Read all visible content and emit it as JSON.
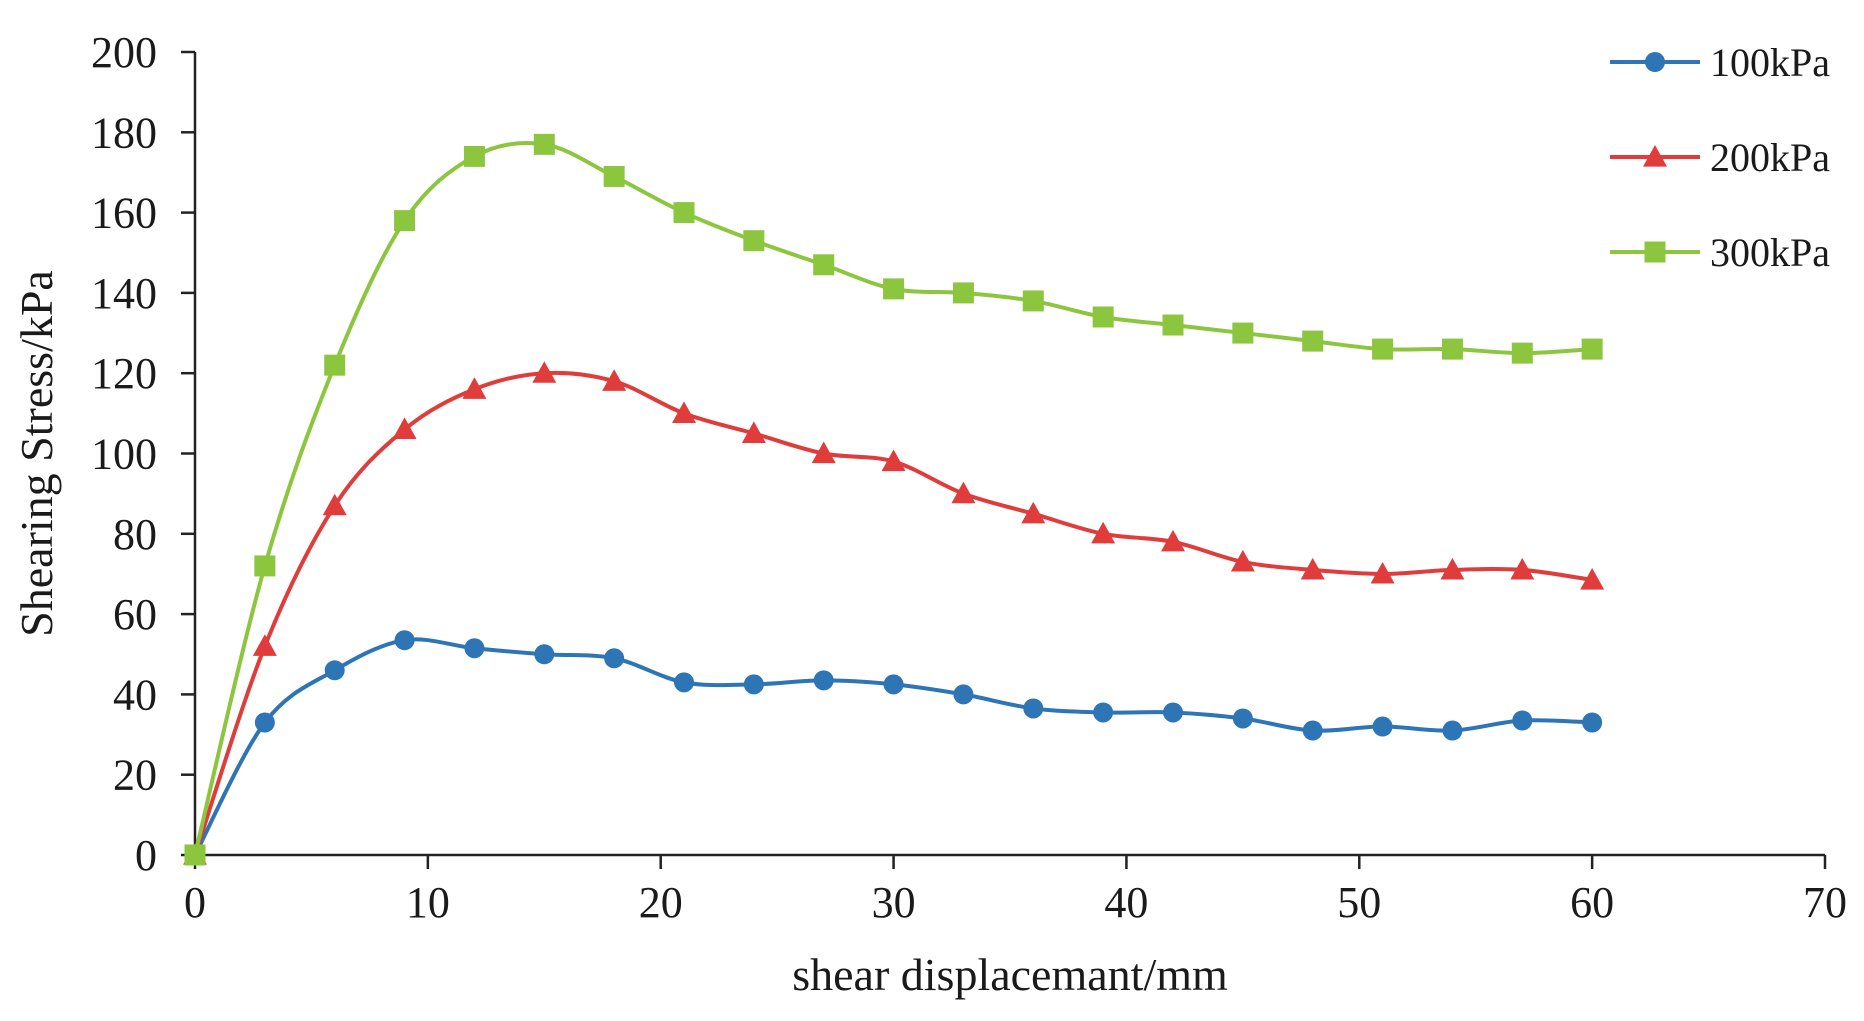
{
  "chart_data": {
    "type": "line",
    "title": "",
    "xlabel": "shear displacemant/mm",
    "ylabel": "Shearing Stress/kPa",
    "xlim": [
      0,
      70
    ],
    "ylim": [
      0,
      200
    ],
    "xticks": [
      0,
      10,
      20,
      30,
      40,
      50,
      60,
      70
    ],
    "yticks": [
      0,
      20,
      40,
      60,
      80,
      100,
      120,
      140,
      160,
      180,
      200
    ],
    "grid": false,
    "legend_position": "top-right",
    "x": [
      0,
      3,
      6,
      9,
      12,
      15,
      18,
      21,
      24,
      27,
      30,
      33,
      36,
      39,
      42,
      45,
      48,
      51,
      54,
      57,
      60
    ],
    "series": [
      {
        "name": "100kPa",
        "color": "#2e75b6",
        "marker": "circle",
        "values": [
          0,
          33,
          46,
          53.5,
          51.5,
          50,
          49,
          43,
          42.5,
          43.5,
          42.5,
          40,
          36.5,
          35.5,
          35.5,
          34,
          31,
          32,
          31,
          33.5,
          33
        ]
      },
      {
        "name": "200kPa",
        "color": "#e03c3c",
        "marker": "triangle",
        "values": [
          0,
          52,
          87,
          106,
          116,
          120,
          118,
          110,
          105,
          100,
          98,
          90,
          85,
          80,
          78,
          73,
          71,
          70,
          71,
          71,
          68.5
        ]
      },
      {
        "name": "300kPa",
        "color": "#8cc63f",
        "marker": "square",
        "values": [
          0,
          72,
          122,
          158,
          174,
          177,
          169,
          160,
          153,
          147,
          141,
          140,
          138,
          134,
          132,
          130,
          128,
          126,
          126,
          125,
          126
        ]
      }
    ]
  }
}
